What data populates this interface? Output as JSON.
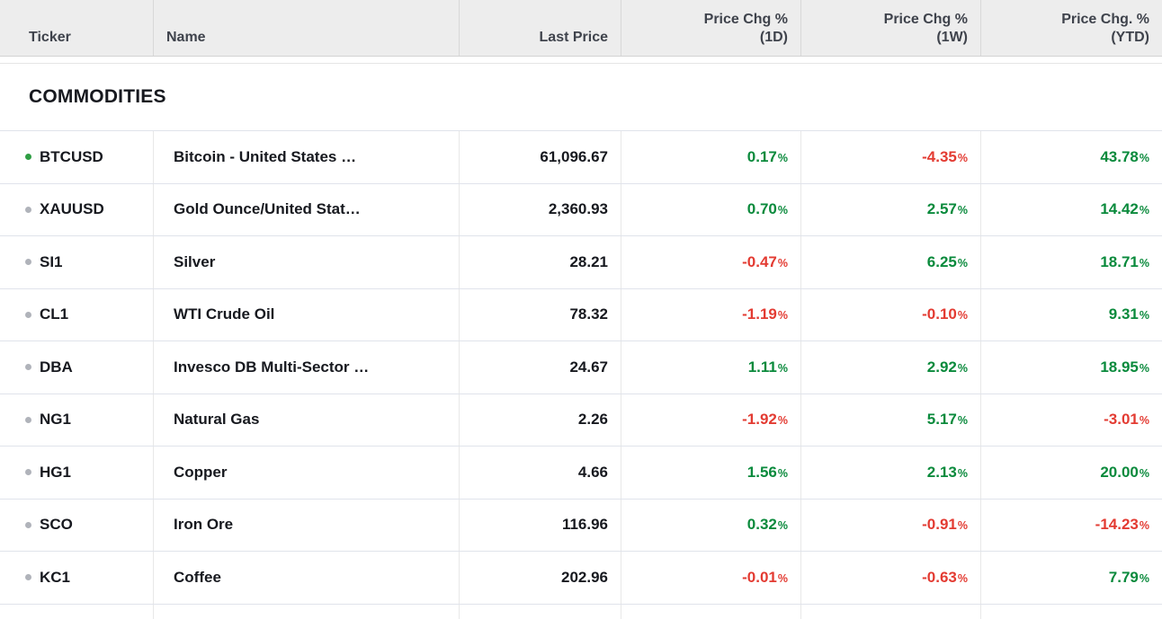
{
  "colors": {
    "up": "#0a8a3c",
    "down": "#e33b32",
    "dot_green": "#2f9e44",
    "dot_gray": "#b0b3ba"
  },
  "header": {
    "columns": [
      {
        "id": "ticker",
        "label": "Ticker"
      },
      {
        "id": "name",
        "label": "Name"
      },
      {
        "id": "last_price",
        "label": "Last Price"
      },
      {
        "id": "chg_1d",
        "line1": "Price Chg %",
        "line2": "(1D)"
      },
      {
        "id": "chg_1w",
        "line1": "Price Chg %",
        "line2": "(1W)"
      },
      {
        "id": "chg_ytd",
        "line1": "Price Chg. %",
        "line2": "(YTD)"
      }
    ]
  },
  "section": {
    "title": "COMMODITIES"
  },
  "percent_sign": "%",
  "rows": [
    {
      "ticker": "BTCUSD",
      "dot": "green",
      "name": "Bitcoin - United States …",
      "last_price": "61,096.67",
      "chg_1d": {
        "value": "0.17",
        "dir": "up"
      },
      "chg_1w": {
        "value": "-4.35",
        "dir": "down"
      },
      "chg_ytd": {
        "value": "43.78",
        "dir": "up"
      }
    },
    {
      "ticker": "XAUUSD",
      "dot": "gray",
      "name": "Gold Ounce/United Stat…",
      "last_price": "2,360.93",
      "chg_1d": {
        "value": "0.70",
        "dir": "up"
      },
      "chg_1w": {
        "value": "2.57",
        "dir": "up"
      },
      "chg_ytd": {
        "value": "14.42",
        "dir": "up"
      }
    },
    {
      "ticker": "SI1",
      "dot": "gray",
      "name": "Silver",
      "last_price": "28.21",
      "chg_1d": {
        "value": "-0.47",
        "dir": "down"
      },
      "chg_1w": {
        "value": "6.25",
        "dir": "up"
      },
      "chg_ytd": {
        "value": "18.71",
        "dir": "up"
      }
    },
    {
      "ticker": "CL1",
      "dot": "gray",
      "name": "WTI Crude Oil",
      "last_price": "78.32",
      "chg_1d": {
        "value": "-1.19",
        "dir": "down"
      },
      "chg_1w": {
        "value": "-0.10",
        "dir": "down"
      },
      "chg_ytd": {
        "value": "9.31",
        "dir": "up"
      }
    },
    {
      "ticker": "DBA",
      "dot": "gray",
      "name": "Invesco DB Multi-Sector …",
      "last_price": "24.67",
      "chg_1d": {
        "value": "1.11",
        "dir": "up"
      },
      "chg_1w": {
        "value": "2.92",
        "dir": "up"
      },
      "chg_ytd": {
        "value": "18.95",
        "dir": "up"
      }
    },
    {
      "ticker": "NG1",
      "dot": "gray",
      "name": "Natural Gas",
      "last_price": "2.26",
      "chg_1d": {
        "value": "-1.92",
        "dir": "down"
      },
      "chg_1w": {
        "value": "5.17",
        "dir": "up"
      },
      "chg_ytd": {
        "value": "-3.01",
        "dir": "down"
      }
    },
    {
      "ticker": "HG1",
      "dot": "gray",
      "name": "Copper",
      "last_price": "4.66",
      "chg_1d": {
        "value": "1.56",
        "dir": "up"
      },
      "chg_1w": {
        "value": "2.13",
        "dir": "up"
      },
      "chg_ytd": {
        "value": "20.00",
        "dir": "up"
      }
    },
    {
      "ticker": "SCO",
      "dot": "gray",
      "name": "Iron Ore",
      "last_price": "116.96",
      "chg_1d": {
        "value": "0.32",
        "dir": "up"
      },
      "chg_1w": {
        "value": "-0.91",
        "dir": "down"
      },
      "chg_ytd": {
        "value": "-14.23",
        "dir": "down"
      }
    },
    {
      "ticker": "KC1",
      "dot": "gray",
      "name": "Coffee",
      "last_price": "202.96",
      "chg_1d": {
        "value": "-0.01",
        "dir": "down"
      },
      "chg_1w": {
        "value": "-0.63",
        "dir": "down"
      },
      "chg_ytd": {
        "value": "7.79",
        "dir": "up"
      }
    }
  ]
}
